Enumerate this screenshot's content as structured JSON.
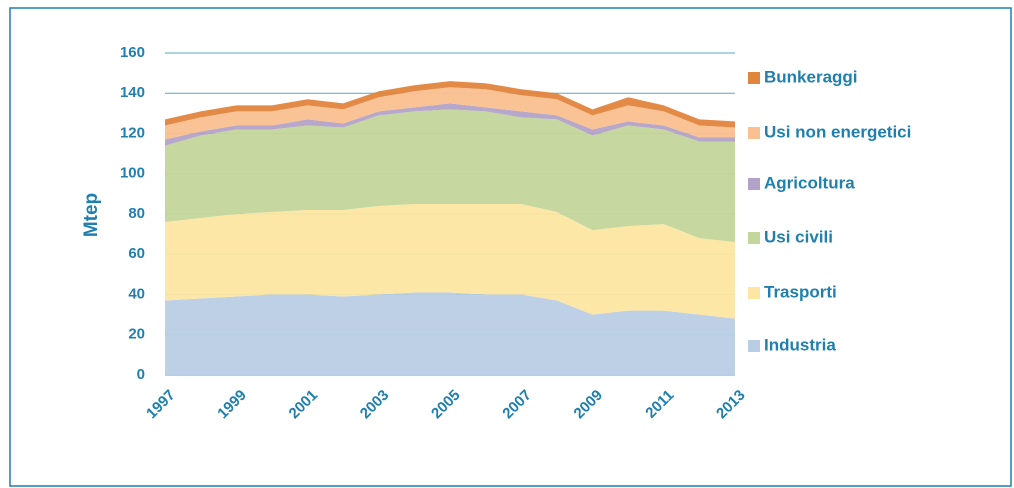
{
  "chart_data": {
    "type": "stacked_area",
    "y_label": "Mtep",
    "x": [
      1997,
      1998,
      1999,
      2000,
      2001,
      2002,
      2003,
      2004,
      2005,
      2006,
      2007,
      2008,
      2009,
      2010,
      2011,
      2012,
      2013
    ],
    "xlim": [
      1997,
      2013
    ],
    "xticks": [
      1997,
      1999,
      2001,
      2003,
      2005,
      2007,
      2009,
      2011,
      2013
    ],
    "ylim": [
      0,
      160
    ],
    "yticks": [
      0,
      20,
      40,
      60,
      80,
      100,
      120,
      140,
      160
    ],
    "grid": true,
    "legend": "right",
    "series": [
      {
        "name": "Industria",
        "color": "#b9cde5",
        "values": [
          37,
          38,
          39,
          40,
          40,
          39,
          40,
          41,
          41,
          40,
          40,
          37,
          30,
          32,
          32,
          30,
          28
        ]
      },
      {
        "name": "Trasporti",
        "color": "#fde6a2",
        "values": [
          39,
          40,
          41,
          41,
          42,
          43,
          44,
          44,
          44,
          45,
          45,
          44,
          42,
          42,
          43,
          38,
          38
        ]
      },
      {
        "name": "Usi civili",
        "color": "#c3d69b",
        "values": [
          38,
          41,
          42,
          41,
          42,
          41,
          45,
          46,
          47,
          46,
          43,
          46,
          47,
          50,
          47,
          48,
          50
        ]
      },
      {
        "name": "Agricoltura",
        "color": "#b3a2c7",
        "values": [
          3,
          2,
          2,
          2,
          3,
          2,
          2,
          2,
          3,
          2,
          3,
          2,
          3,
          2,
          2,
          2,
          2
        ]
      },
      {
        "name": "Usi non energetici",
        "color": "#fac090",
        "values": [
          7,
          7,
          7,
          7,
          7,
          7,
          7,
          8,
          8,
          9,
          8,
          8,
          7,
          8,
          7,
          6,
          5
        ]
      },
      {
        "name": "Bunkeraggi",
        "color": "#e2853c",
        "values": [
          3,
          3,
          3,
          3,
          3,
          3,
          3,
          3,
          3,
          3,
          3,
          3,
          3,
          4,
          3,
          3,
          3
        ]
      }
    ]
  }
}
